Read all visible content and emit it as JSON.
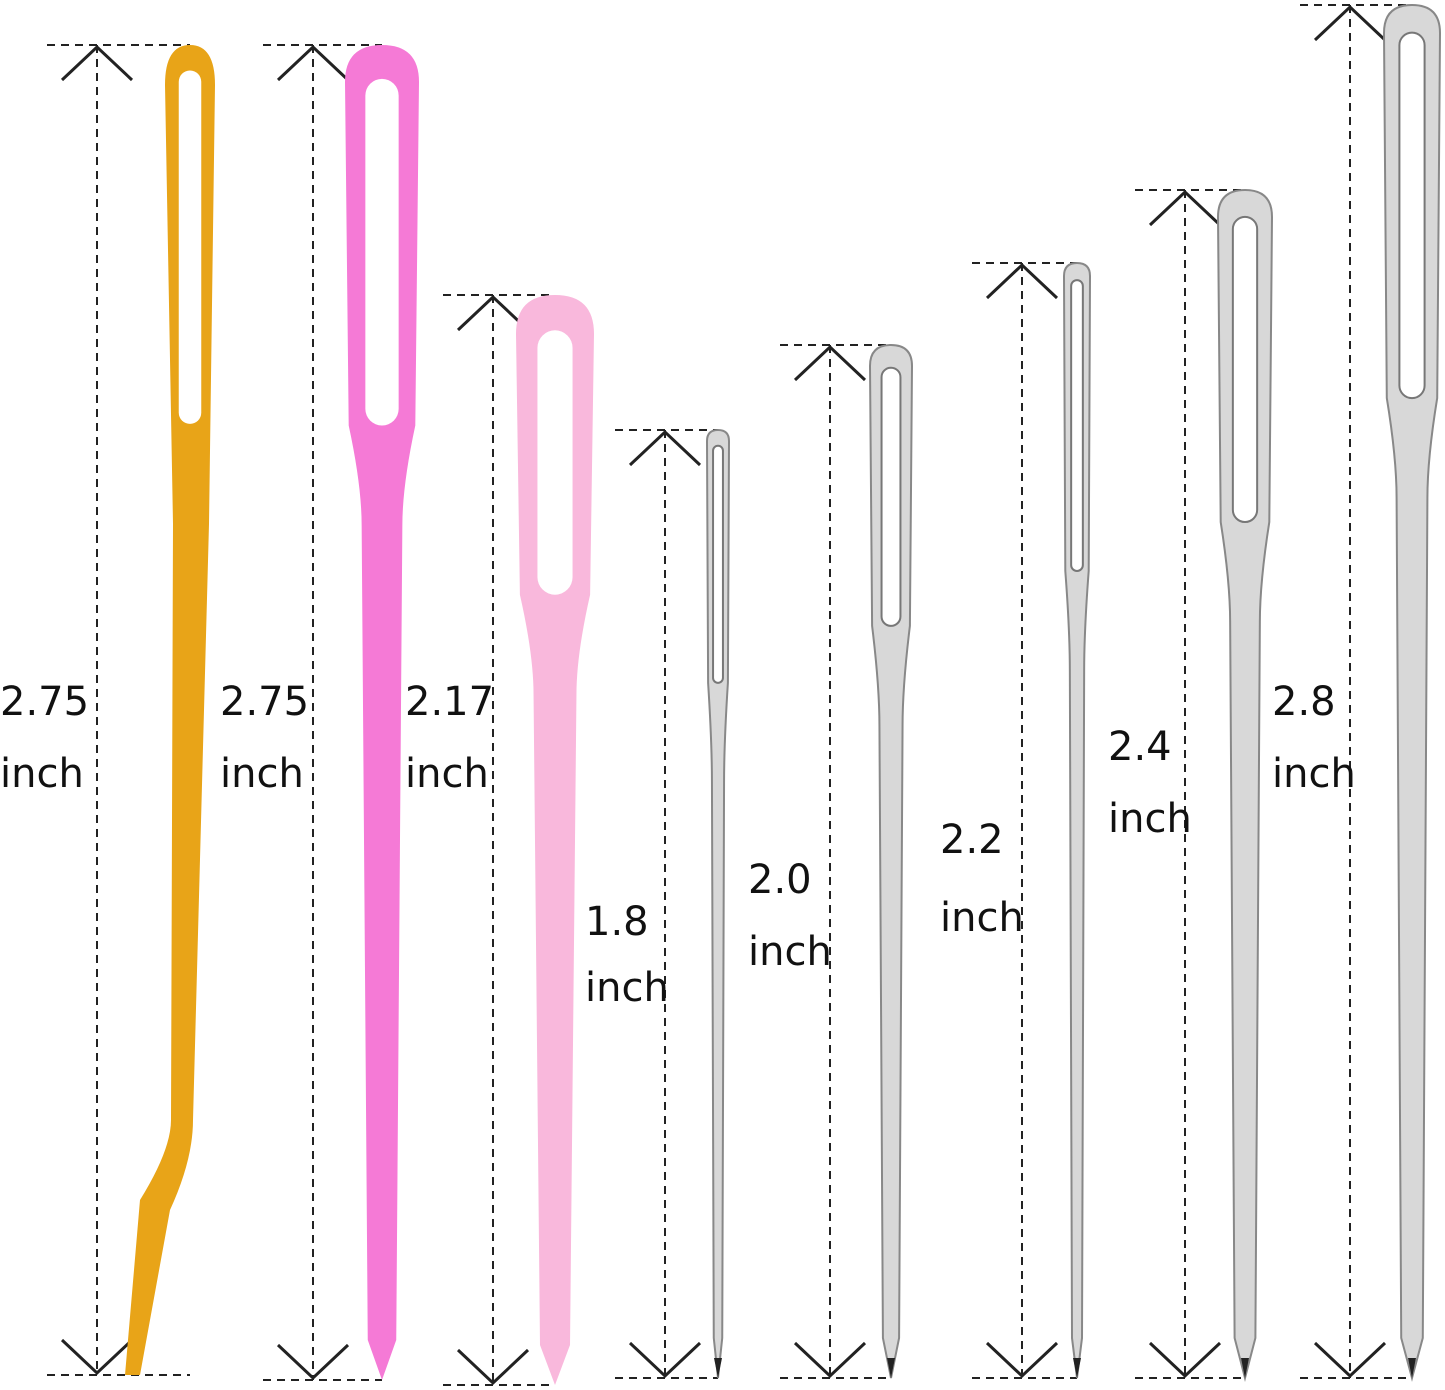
{
  "needles": [
    {
      "value": "2.75",
      "unit": "inch",
      "material": "gold metal bent tip",
      "color": "#e8a418"
    },
    {
      "value": "2.75",
      "unit": "inch",
      "material": "pink plastic",
      "color": "#f57ad6"
    },
    {
      "value": "2.17",
      "unit": "inch",
      "material": "light pink plastic",
      "color": "#f9b8dc"
    },
    {
      "value": "1.8",
      "unit": "inch",
      "material": "steel",
      "color": "#d8d8d8"
    },
    {
      "value": "2.0",
      "unit": "inch",
      "material": "steel",
      "color": "#d8d8d8"
    },
    {
      "value": "2.2",
      "unit": "inch",
      "material": "steel",
      "color": "#d8d8d8"
    },
    {
      "value": "2.4",
      "unit": "inch",
      "material": "steel",
      "color": "#d8d8d8"
    },
    {
      "value": "2.8",
      "unit": "inch",
      "material": "steel",
      "color": "#d8d8d8"
    }
  ],
  "colors": {
    "dimension_line": "#222222",
    "text": "#111111"
  }
}
